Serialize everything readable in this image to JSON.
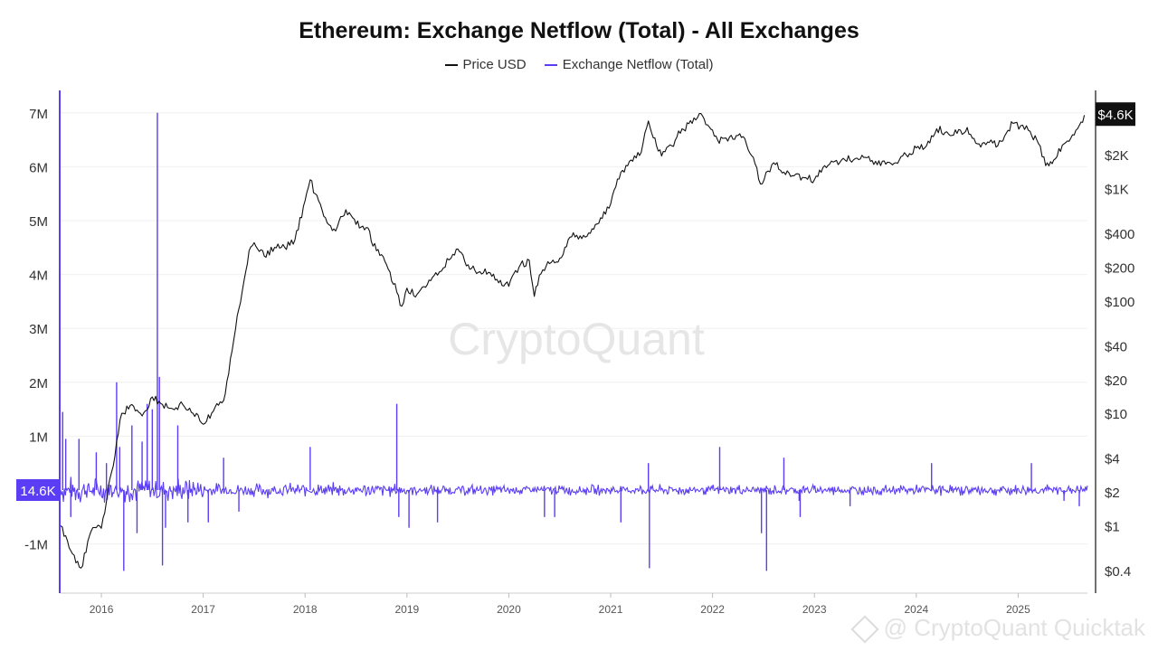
{
  "chart_data": {
    "type": "line",
    "title": "Ethereum: Exchange Netflow (Total) - All Exchanges",
    "watermark": "CryptoQuant",
    "bottom_watermark": "@ CryptoQuant Quicktak",
    "legend": {
      "placement": "top-center"
    },
    "grid": true,
    "colors": {
      "price": "#111111",
      "netflow": "#5b3df5",
      "value_tag_left": "#5b3df5",
      "value_tag_right": "#111111"
    },
    "x_axis": {
      "ticks": [
        "2016",
        "2017",
        "2018",
        "2019",
        "2020",
        "2021",
        "2022",
        "2023",
        "2024",
        "2025"
      ],
      "range": [
        "2015-08",
        "2025-09"
      ]
    },
    "y_left": {
      "ticks": [
        "7M",
        "6M",
        "5M",
        "4M",
        "3M",
        "2M",
        "1M",
        "-1M"
      ],
      "range": [
        -1500000,
        7000000
      ],
      "current_value_label": "14.6K"
    },
    "y_right": {
      "scale": "log",
      "ticks": [
        "$2K",
        "$1K",
        "$400",
        "$200",
        "$100",
        "$40",
        "$20",
        "$10",
        "$4",
        "$2",
        "$1",
        "$0.4"
      ],
      "range": [
        0.3,
        4800
      ],
      "current_value_label": "$4.6K"
    },
    "series": [
      {
        "name": "Price USD",
        "x": [
          2015.6,
          2015.7,
          2015.8,
          2015.9,
          2016.0,
          2016.1,
          2016.2,
          2016.3,
          2016.4,
          2016.5,
          2016.6,
          2016.7,
          2016.8,
          2016.9,
          2017.0,
          2017.1,
          2017.2,
          2017.3,
          2017.35,
          2017.45,
          2017.5,
          2017.6,
          2017.7,
          2017.8,
          2017.9,
          2018.0,
          2018.05,
          2018.1,
          2018.2,
          2018.3,
          2018.4,
          2018.5,
          2018.6,
          2018.7,
          2018.8,
          2018.9,
          2018.95,
          2019.0,
          2019.1,
          2019.2,
          2019.3,
          2019.45,
          2019.5,
          2019.6,
          2019.7,
          2019.8,
          2019.9,
          2020.0,
          2020.1,
          2020.2,
          2020.25,
          2020.3,
          2020.4,
          2020.5,
          2020.6,
          2020.7,
          2020.8,
          2020.9,
          2021.0,
          2021.1,
          2021.2,
          2021.3,
          2021.37,
          2021.45,
          2021.5,
          2021.6,
          2021.7,
          2021.8,
          2021.87,
          2021.95,
          2022.05,
          2022.1,
          2022.2,
          2022.3,
          2022.4,
          2022.47,
          2022.6,
          2022.7,
          2022.8,
          2022.9,
          2023.0,
          2023.1,
          2023.2,
          2023.3,
          2023.4,
          2023.5,
          2023.6,
          2023.7,
          2023.8,
          2023.9,
          2024.0,
          2024.1,
          2024.2,
          2024.3,
          2024.4,
          2024.5,
          2024.6,
          2024.7,
          2024.8,
          2024.9,
          2024.95,
          2025.1,
          2025.2,
          2025.27,
          2025.35,
          2025.45,
          2025.55,
          2025.65
        ],
        "y": [
          1.0,
          0.6,
          0.42,
          0.9,
          0.95,
          3.0,
          10.0,
          12.0,
          9.5,
          14.0,
          12.0,
          11.0,
          12.0,
          10.0,
          8.0,
          10.5,
          13.0,
          45.0,
          85.0,
          280.0,
          330.0,
          250.0,
          300.0,
          300.0,
          350.0,
          780.0,
          1200.0,
          900.0,
          550.0,
          420.0,
          650.0,
          480.0,
          450.0,
          280.0,
          210.0,
          120.0,
          90.0,
          130.0,
          115.0,
          140.0,
          170.0,
          260.0,
          290.0,
          210.0,
          180.0,
          180.0,
          145.0,
          135.0,
          200.0,
          230.0,
          110.0,
          170.0,
          215.0,
          240.0,
          370.0,
          380.0,
          400.0,
          550.0,
          730.0,
          1400.0,
          1800.0,
          2100.0,
          4000.0,
          2400.0,
          1950.0,
          2400.0,
          3400.0,
          3800.0,
          4650.0,
          3700.0,
          2700.0,
          2800.0,
          2750.0,
          2900.0,
          1900.0,
          1100.0,
          1700.0,
          1400.0,
          1300.0,
          1250.0,
          1200.0,
          1600.0,
          1750.0,
          1800.0,
          1850.0,
          1900.0,
          1750.0,
          1650.0,
          1700.0,
          2000.0,
          2300.0,
          2400.0,
          3400.0,
          3200.0,
          3100.0,
          3500.0,
          2500.0,
          2600.0,
          2400.0,
          3300.0,
          3800.0,
          3300.0,
          2500.0,
          1600.0,
          1800.0,
          2500.0,
          3000.0,
          4500.0
        ]
      },
      {
        "name": "Exchange Netflow (Total)",
        "spikes": {
          "x": [
            2015.62,
            2015.65,
            2015.7,
            2015.78,
            2015.95,
            2016.05,
            2016.15,
            2016.18,
            2016.22,
            2016.3,
            2016.35,
            2016.4,
            2016.45,
            2016.5,
            2016.55,
            2016.57,
            2016.6,
            2016.63,
            2016.75,
            2016.85,
            2017.05,
            2017.2,
            2017.35,
            2018.05,
            2018.9,
            2018.92,
            2019.02,
            2019.3,
            2020.35,
            2020.45,
            2021.1,
            2021.37,
            2021.38,
            2022.07,
            2022.48,
            2022.53,
            2022.7,
            2022.85,
            2022.86,
            2023.35,
            2024.15,
            2025.13,
            2025.45,
            2025.6
          ],
          "y": [
            1450000,
            950000,
            -500000,
            950000,
            700000,
            500000,
            2000000,
            800000,
            -1500000,
            1200000,
            -800000,
            900000,
            1600000,
            1500000,
            7000000,
            2100000,
            -1400000,
            -700000,
            1200000,
            -600000,
            -600000,
            600000,
            -400000,
            800000,
            1600000,
            -500000,
            -700000,
            -600000,
            -500000,
            -500000,
            -600000,
            500000,
            -1450000,
            800000,
            -800000,
            -1500000,
            600000,
            -200000,
            -500000,
            -300000,
            500000,
            500000,
            -200000,
            -300000
          ]
        }
      }
    ]
  }
}
